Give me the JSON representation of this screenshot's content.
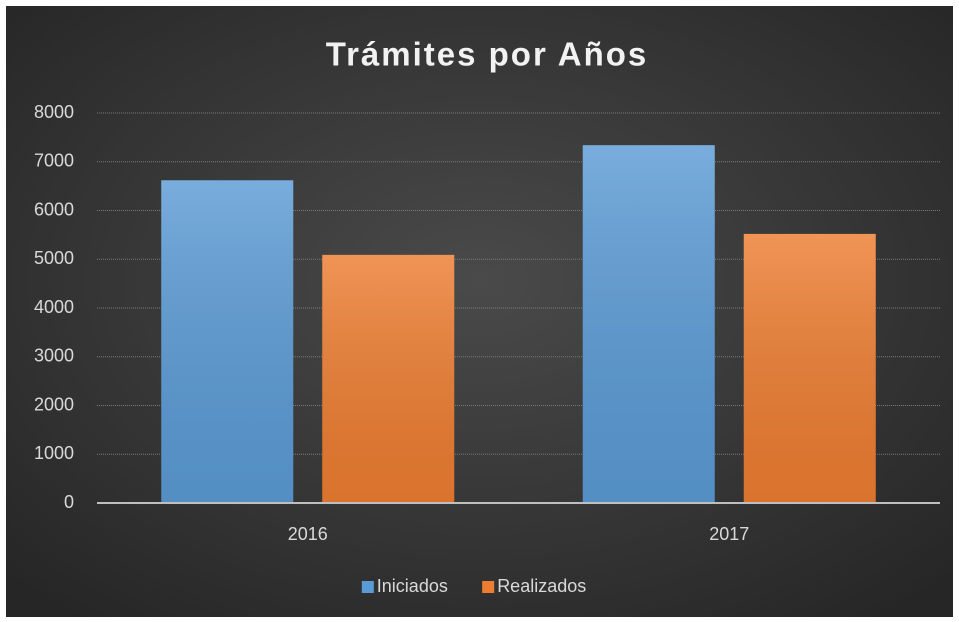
{
  "chart_data": {
    "type": "bar",
    "title": "Trámites por Años",
    "categories": [
      "2016",
      "2017"
    ],
    "series": [
      {
        "name": "Iniciados",
        "color": "#5b9bd5",
        "values": [
          6620,
          7340
        ]
      },
      {
        "name": "Realizados",
        "color": "#ed7d31",
        "values": [
          5090,
          5520
        ]
      }
    ],
    "ylim": [
      0,
      8000
    ],
    "yticks": [
      0,
      1000,
      2000,
      3000,
      4000,
      5000,
      6000,
      7000,
      8000
    ],
    "grid": true,
    "legend": "bottom"
  }
}
